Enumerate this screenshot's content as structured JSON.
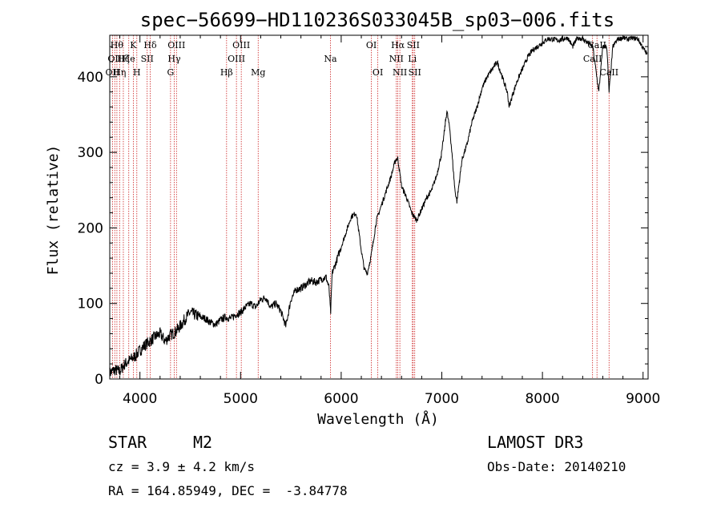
{
  "chart_data": {
    "type": "line",
    "title": "spec−56699−HD110236S033045B_sp03−006.fits",
    "xlabel": "Wavelength (Å)",
    "ylabel": "Flux (relative)",
    "xlim": [
      3700,
      9050
    ],
    "ylim": [
      0,
      455
    ],
    "x_ticks": [
      4000,
      5000,
      6000,
      7000,
      8000,
      9000
    ],
    "x_tick_labels": [
      "4000",
      "5000",
      "6000",
      "7000",
      "8000",
      "9000"
    ],
    "y_ticks": [
      0,
      100,
      200,
      300,
      400
    ],
    "y_tick_labels": [
      "0",
      "100",
      "200",
      "300",
      "400"
    ],
    "series": [
      {
        "name": "flux",
        "x": [
          3700,
          3750,
          3800,
          3850,
          3900,
          3950,
          4000,
          4050,
          4100,
          4150,
          4200,
          4250,
          4300,
          4350,
          4400,
          4450,
          4500,
          4550,
          4600,
          4650,
          4700,
          4750,
          4800,
          4850,
          4900,
          4950,
          5000,
          5050,
          5100,
          5150,
          5200,
          5250,
          5300,
          5350,
          5400,
          5450,
          5500,
          5550,
          5600,
          5650,
          5700,
          5750,
          5800,
          5850,
          5880,
          5895,
          5910,
          5950,
          6000,
          6050,
          6100,
          6150,
          6200,
          6230,
          6260,
          6300,
          6350,
          6400,
          6450,
          6500,
          6540,
          6563,
          6600,
          6650,
          6700,
          6750,
          6800,
          6850,
          6900,
          6950,
          7000,
          7050,
          7080,
          7100,
          7130,
          7150,
          7200,
          7250,
          7300,
          7350,
          7400,
          7450,
          7500,
          7550,
          7600,
          7650,
          7670,
          7700,
          7750,
          7800,
          7850,
          7900,
          7950,
          8000,
          8050,
          8100,
          8150,
          8200,
          8250,
          8300,
          8350,
          8400,
          8450,
          8500,
          8520,
          8540,
          8560,
          8600,
          8640,
          8662,
          8700,
          8750,
          8800,
          8850,
          8900,
          8950,
          9000,
          9040
        ],
        "values": [
          8,
          12,
          10,
          20,
          25,
          30,
          38,
          45,
          50,
          56,
          60,
          50,
          58,
          62,
          70,
          80,
          88,
          85,
          82,
          80,
          75,
          72,
          78,
          82,
          80,
          85,
          88,
          95,
          100,
          95,
          105,
          108,
          95,
          100,
          90,
          70,
          105,
          118,
          120,
          125,
          130,
          128,
          132,
          135,
          120,
          85,
          140,
          155,
          175,
          195,
          215,
          220,
          170,
          145,
          140,
          165,
          210,
          230,
          250,
          270,
          290,
          292,
          255,
          240,
          220,
          210,
          225,
          240,
          250,
          270,
          300,
          355,
          330,
          300,
          250,
          235,
          290,
          310,
          340,
          360,
          385,
          400,
          410,
          420,
          400,
          380,
          360,
          375,
          395,
          410,
          425,
          435,
          440,
          445,
          450,
          450,
          448,
          450,
          452,
          440,
          452,
          450,
          445,
          440,
          420,
          400,
          380,
          440,
          440,
          380,
          440,
          450,
          452,
          450,
          452,
          450,
          438,
          430
        ]
      }
    ],
    "lines": [
      {
        "w": 3727,
        "labels": [
          {
            "row": 2,
            "text": "OII"
          }
        ]
      },
      {
        "w": 3750,
        "labels": [
          {
            "row": 1,
            "text": "OII"
          }
        ]
      },
      {
        "w": 3771,
        "labels": [
          {
            "row": 0,
            "text": "Hθ"
          }
        ]
      },
      {
        "w": 3798,
        "labels": [
          {
            "row": 2,
            "text": "Hη"
          }
        ]
      },
      {
        "w": 3835,
        "labels": [
          {
            "row": 1,
            "text": "Hζ"
          }
        ]
      },
      {
        "w": 3889,
        "labels": [
          {
            "row": 1,
            "text": "He"
          }
        ]
      },
      {
        "w": 3934,
        "labels": [
          {
            "row": 0,
            "text": "K"
          }
        ]
      },
      {
        "w": 3969,
        "labels": [
          {
            "row": 2,
            "text": "H"
          }
        ]
      },
      {
        "w": 4072,
        "labels": [
          {
            "row": 1,
            "text": "SII"
          }
        ]
      },
      {
        "w": 4102,
        "labels": [
          {
            "row": 0,
            "text": "Hδ"
          }
        ]
      },
      {
        "w": 4304,
        "labels": [
          {
            "row": 2,
            "text": "G"
          }
        ]
      },
      {
        "w": 4341,
        "labels": [
          {
            "row": 1,
            "text": "Hγ"
          }
        ]
      },
      {
        "w": 4363,
        "labels": [
          {
            "row": 0,
            "text": "OIII"
          }
        ]
      },
      {
        "w": 4861,
        "labels": [
          {
            "row": 2,
            "text": "Hβ"
          }
        ]
      },
      {
        "w": 4959,
        "labels": [
          {
            "row": 1,
            "text": "OIII"
          }
        ]
      },
      {
        "w": 5007,
        "labels": [
          {
            "row": 0,
            "text": "OIII"
          }
        ]
      },
      {
        "w": 5175,
        "labels": [
          {
            "row": 2,
            "text": "Mg"
          }
        ]
      },
      {
        "w": 5893,
        "labels": [
          {
            "row": 1,
            "text": "Na"
          }
        ]
      },
      {
        "w": 6300,
        "labels": [
          {
            "row": 0,
            "text": "OI"
          }
        ]
      },
      {
        "w": 6364,
        "labels": [
          {
            "row": 2,
            "text": "OI"
          }
        ]
      },
      {
        "w": 6548,
        "labels": [
          {
            "row": 1,
            "text": "NII"
          }
        ]
      },
      {
        "w": 6563,
        "labels": [
          {
            "row": 0,
            "text": "Hα"
          }
        ]
      },
      {
        "w": 6583,
        "labels": [
          {
            "row": 2,
            "text": "NII"
          }
        ]
      },
      {
        "w": 6707,
        "labels": [
          {
            "row": 1,
            "text": "Li"
          }
        ]
      },
      {
        "w": 6716,
        "labels": [
          {
            "row": 0,
            "text": "SII"
          }
        ]
      },
      {
        "w": 6731,
        "labels": [
          {
            "row": 2,
            "text": "SII"
          }
        ]
      },
      {
        "w": 8498,
        "labels": [
          {
            "row": 1,
            "text": "CaII"
          }
        ]
      },
      {
        "w": 8542,
        "labels": [
          {
            "row": 0,
            "text": "CaII"
          }
        ]
      },
      {
        "w": 8662,
        "labels": [
          {
            "row": 2,
            "text": "CaII"
          }
        ]
      }
    ],
    "line_color": "#cc2222"
  },
  "info": {
    "class": "STAR",
    "subclass": "M2",
    "survey": "LAMOST DR3",
    "cz": "cz = 3.9 ± 4.2 km/s",
    "obs_date": "Obs-Date: 20140210",
    "coords": "RA = 164.85949, DEC =  -3.84778"
  }
}
